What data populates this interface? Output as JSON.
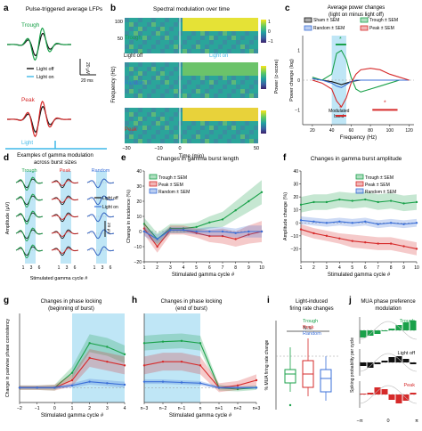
{
  "figure": {
    "colors": {
      "trough": "#1aa14a",
      "peak": "#d62a2a",
      "random": "#3a6fd8",
      "light": "#3fb8e8",
      "black": "#111111",
      "gray": "#888888",
      "shade": "#bfe6f6"
    }
  },
  "panel_a": {
    "letter": "a",
    "title": "Pulse-triggered average LFPs",
    "label_trough": "Trough",
    "label_peak": "Peak",
    "legend_off": "Light off",
    "legend_on": "Light on",
    "scale_v": "20 μV",
    "scale_t": "20 ms",
    "label_light": "Light"
  },
  "panel_b": {
    "letter": "b",
    "title": "Spectral modulation over time",
    "rows": [
      "Trough",
      "Random",
      "Peak"
    ],
    "y_ticks": [
      "100",
      "50"
    ],
    "ylabel": "Frequency (Hz)",
    "x_ticks": [
      "−30",
      "−10",
      "0",
      "50"
    ],
    "xlabel": "Time (min)",
    "light_off": "Light off",
    "light_on": "Light on",
    "cbar_ticks": [
      "1",
      "0",
      "−1"
    ],
    "cbar_label": "Power (z-score)"
  },
  "panel_c": {
    "letter": "c",
    "title1": "Average power changes",
    "title2": "(light on minus light off)",
    "legend": [
      "Sham ± SEM",
      "Trough ± SEM",
      "Random ± SEM",
      "Peak ± SEM"
    ],
    "y_ticks": [
      "1",
      "0",
      "−1"
    ],
    "ylabel": "Power change (log)",
    "x_ticks": [
      "20",
      "40",
      "60",
      "80",
      "100",
      "120"
    ],
    "xlabel": "Frequency (Hz)",
    "band_label1": "Modulated",
    "band_label2": "band",
    "star": "*"
  },
  "panel_d": {
    "letter": "d",
    "title1": "Examples of gamma modulation",
    "title2": "across burst sizes",
    "cols": [
      "Trough",
      "Peak",
      "Random"
    ],
    "ylabel": "Amplitude (μV)",
    "x_ticks": [
      "1",
      "3",
      "6"
    ],
    "xlabel": "Stimulated gamma cycle #",
    "legend_off": "Light off",
    "legend_on": "Light on",
    "scale": "20 μV"
  },
  "panel_e": {
    "letter": "e",
    "title": "Changes in gamma burst length",
    "ylabel": "Change in incidence (%)",
    "xlabel": "Stimulated gamma cycle #",
    "legend": [
      "Trough ± SEM",
      "Peak ± SEM",
      "Random ± SEM"
    ]
  },
  "panel_f": {
    "letter": "f",
    "title": "Changes in gamma burst amplitude",
    "ylabel": "Amplitude change (%)",
    "xlabel": "Stimulated gamma cycle #",
    "legend": [
      "Trough ± SEM",
      "Peak ± SEM",
      "Random ± SEM"
    ]
  },
  "panel_g": {
    "letter": "g",
    "title1": "Changes in phase locking",
    "title2": "(beginning of burst)",
    "ylabel": "Change in pairwise phase consistency",
    "xlabel": "Stimulated gamma cycle #"
  },
  "panel_h": {
    "letter": "h",
    "title1": "Changes in phase locking",
    "title2": "(end of burst)",
    "xlabel": "Stimulated gamma cycle #"
  },
  "panel_i": {
    "letter": "i",
    "title1": "Light-induced",
    "title2": "firing rate changes",
    "legend": [
      "Trough",
      "Peak",
      "Random"
    ],
    "ns": "N.S.",
    "ylabel": "% MUA firing rate change"
  },
  "panel_j": {
    "letter": "j",
    "title1": "MUA phase preference",
    "title2": "modulation",
    "labels": [
      "Trough",
      "Light off",
      "Peak"
    ],
    "ylabel": "Spiking probability per cycle",
    "x_ticks": [
      "−π",
      "0",
      "π"
    ]
  },
  "chart_data": [
    {
      "panel": "c",
      "type": "line",
      "x": [
        20,
        30,
        40,
        45,
        50,
        55,
        60,
        65,
        70,
        80,
        90,
        100,
        110,
        120
      ],
      "xlim": [
        10,
        125
      ],
      "ylim": [
        -1.5,
        1.5
      ],
      "series": [
        {
          "name": "Sham ± SEM",
          "color": "#111111",
          "values": [
            0.05,
            0.0,
            -0.05,
            -0.1,
            -0.15,
            -0.1,
            -0.05,
            -0.02,
            0,
            0,
            0,
            0,
            0,
            0
          ]
        },
        {
          "name": "Trough ± SEM",
          "color": "#1aa14a",
          "values": [
            0.1,
            0.0,
            0.2,
            0.9,
            1.0,
            0.7,
            0.1,
            -0.3,
            -0.4,
            -0.3,
            -0.2,
            -0.1,
            0,
            0
          ]
        },
        {
          "name": "Random ± SEM",
          "color": "#3a6fd8",
          "values": [
            0.05,
            0.0,
            -0.1,
            -0.2,
            -0.25,
            -0.15,
            -0.05,
            0,
            0,
            0,
            0,
            0,
            0,
            0
          ]
        },
        {
          "name": "Peak ± SEM",
          "color": "#d62a2a",
          "values": [
            0.0,
            -0.1,
            -0.3,
            -0.7,
            -0.9,
            -0.6,
            -0.1,
            0.2,
            0.35,
            0.4,
            0.35,
            0.2,
            0.1,
            0.0
          ]
        }
      ]
    },
    {
      "panel": "e",
      "type": "line",
      "x": [
        1,
        2,
        3,
        4,
        5,
        6,
        7,
        8,
        9,
        10
      ],
      "xlim": [
        1,
        10
      ],
      "ylim": [
        -20,
        40
      ],
      "yticks": [
        -20,
        -10,
        0,
        10,
        20,
        30,
        40
      ],
      "series": [
        {
          "name": "Trough ± SEM",
          "color": "#1aa14a",
          "values": [
            5,
            -5,
            2,
            2,
            3,
            6,
            8,
            14,
            20,
            26
          ],
          "sem": [
            4,
            4,
            3,
            3,
            3,
            4,
            5,
            6,
            7,
            8
          ]
        },
        {
          "name": "Peak ± SEM",
          "color": "#d62a2a",
          "values": [
            2,
            -10,
            1,
            1,
            -1,
            -3,
            -3,
            -5,
            -2,
            0
          ],
          "sem": [
            4,
            4,
            3,
            3,
            3,
            4,
            5,
            5,
            6,
            7
          ]
        },
        {
          "name": "Random ± SEM",
          "color": "#3a6fd8",
          "values": [
            0,
            -5,
            1,
            1,
            0,
            0,
            0,
            -1,
            0,
            0
          ],
          "sem": [
            3,
            3,
            2,
            2,
            2,
            3,
            3,
            3,
            4,
            4
          ]
        }
      ]
    },
    {
      "panel": "f",
      "type": "line",
      "x": [
        1,
        2,
        3,
        4,
        5,
        6,
        7,
        8,
        9,
        10
      ],
      "xlim": [
        1,
        10
      ],
      "ylim": [
        -30,
        40
      ],
      "yticks": [
        -20,
        -10,
        0,
        10,
        20,
        30,
        40
      ],
      "series": [
        {
          "name": "Trough ± SEM",
          "color": "#1aa14a",
          "values": [
            14,
            16,
            16,
            18,
            17,
            18,
            16,
            17,
            15,
            16
          ],
          "sem": [
            6,
            6,
            6,
            6,
            6,
            6,
            6,
            6,
            6,
            6
          ]
        },
        {
          "name": "Peak ± SEM",
          "color": "#d62a2a",
          "values": [
            -5,
            -8,
            -10,
            -12,
            -14,
            -15,
            -16,
            -16,
            -18,
            -20
          ],
          "sem": [
            4,
            4,
            4,
            4,
            5,
            5,
            5,
            5,
            5,
            5
          ]
        },
        {
          "name": "Random ± SEM",
          "color": "#3a6fd8",
          "values": [
            2,
            1,
            0,
            1,
            0,
            1,
            -1,
            0,
            -1,
            0
          ],
          "sem": [
            3,
            3,
            3,
            3,
            3,
            3,
            3,
            3,
            3,
            3
          ]
        }
      ]
    },
    {
      "panel": "g",
      "type": "line",
      "x": [
        -2,
        -1,
        0,
        1,
        2,
        3,
        4
      ],
      "xlim": [
        -2,
        4
      ],
      "ylim": [
        -0.02,
        0.1
      ],
      "x_tick_labels": [
        "−2",
        "−1",
        "0",
        "1",
        "2",
        "3",
        "4"
      ],
      "series": [
        {
          "name": "Trough",
          "color": "#1aa14a",
          "values": [
            0,
            0,
            0,
            0.02,
            0.06,
            0.055,
            0.045
          ],
          "sem": [
            0.003,
            0.003,
            0.004,
            0.008,
            0.012,
            0.012,
            0.012
          ]
        },
        {
          "name": "Peak",
          "color": "#d62a2a",
          "values": [
            0,
            0,
            0,
            0.01,
            0.04,
            0.035,
            0.03
          ],
          "sem": [
            0.003,
            0.003,
            0.004,
            0.008,
            0.012,
            0.012,
            0.012
          ]
        },
        {
          "name": "Random",
          "color": "#3a6fd8",
          "values": [
            0,
            0,
            0,
            0.003,
            0.008,
            0.006,
            0.004
          ],
          "sem": [
            0.002,
            0.002,
            0.002,
            0.003,
            0.004,
            0.004,
            0.004
          ]
        }
      ]
    },
    {
      "panel": "h",
      "type": "line",
      "x": [
        0,
        1,
        2,
        3,
        4,
        5,
        6
      ],
      "xlim": [
        0,
        6
      ],
      "ylim": [
        -0.02,
        0.1
      ],
      "x_tick_labels": [
        "n−3",
        "n−2",
        "n−1",
        "n",
        "n+1",
        "n+2",
        "n+3"
      ],
      "series": [
        {
          "name": "Trough",
          "color": "#1aa14a",
          "values": [
            0.06,
            0.062,
            0.063,
            0.06,
            0.0,
            -0.002,
            0
          ],
          "sem": [
            0.01,
            0.01,
            0.01,
            0.01,
            0.004,
            0.003,
            0.003
          ]
        },
        {
          "name": "Peak",
          "color": "#d62a2a",
          "values": [
            0.03,
            0.035,
            0.035,
            0.03,
            0.0,
            0.003,
            0.01
          ],
          "sem": [
            0.012,
            0.012,
            0.012,
            0.012,
            0.006,
            0.006,
            0.008
          ]
        },
        {
          "name": "Random",
          "color": "#3a6fd8",
          "values": [
            0.008,
            0.008,
            0.007,
            0.006,
            0.0,
            0.0,
            0.0
          ],
          "sem": [
            0.003,
            0.003,
            0.003,
            0.003,
            0.002,
            0.002,
            0.002
          ]
        }
      ]
    },
    {
      "panel": "i",
      "type": "box",
      "categories": [
        "Trough",
        "Peak",
        "Random"
      ],
      "ylim": [
        -60,
        40
      ],
      "boxes": [
        {
          "color": "#1aa14a",
          "min": -40,
          "q1": -30,
          "median": -20,
          "q3": -15,
          "max": 10,
          "outlier": -55
        },
        {
          "color": "#d62a2a",
          "min": -45,
          "q1": -35,
          "median": -20,
          "q3": -5,
          "max": 20
        },
        {
          "color": "#3a6fd8",
          "min": -50,
          "q1": -40,
          "median": -25,
          "q3": -15,
          "max": 0
        }
      ]
    },
    {
      "panel": "j",
      "type": "bar",
      "x_tick_labels": [
        "−π",
        "0",
        "π"
      ],
      "series": [
        {
          "name": "Trough",
          "color": "#1aa14a",
          "values": [
            -0.4,
            -0.3,
            -0.2,
            -0.05,
            0.1,
            0.3,
            0.45,
            0.55
          ]
        },
        {
          "name": "Light off",
          "color": "#111111",
          "values": [
            -0.2,
            -0.3,
            -0.1,
            0.1,
            0.3,
            0.35,
            0.2,
            -0.1
          ]
        },
        {
          "name": "Peak",
          "color": "#d62a2a",
          "values": [
            0.05,
            0.1,
            0.4,
            0.3,
            -0.3,
            -0.5,
            -0.35,
            0.1
          ]
        }
      ]
    }
  ]
}
